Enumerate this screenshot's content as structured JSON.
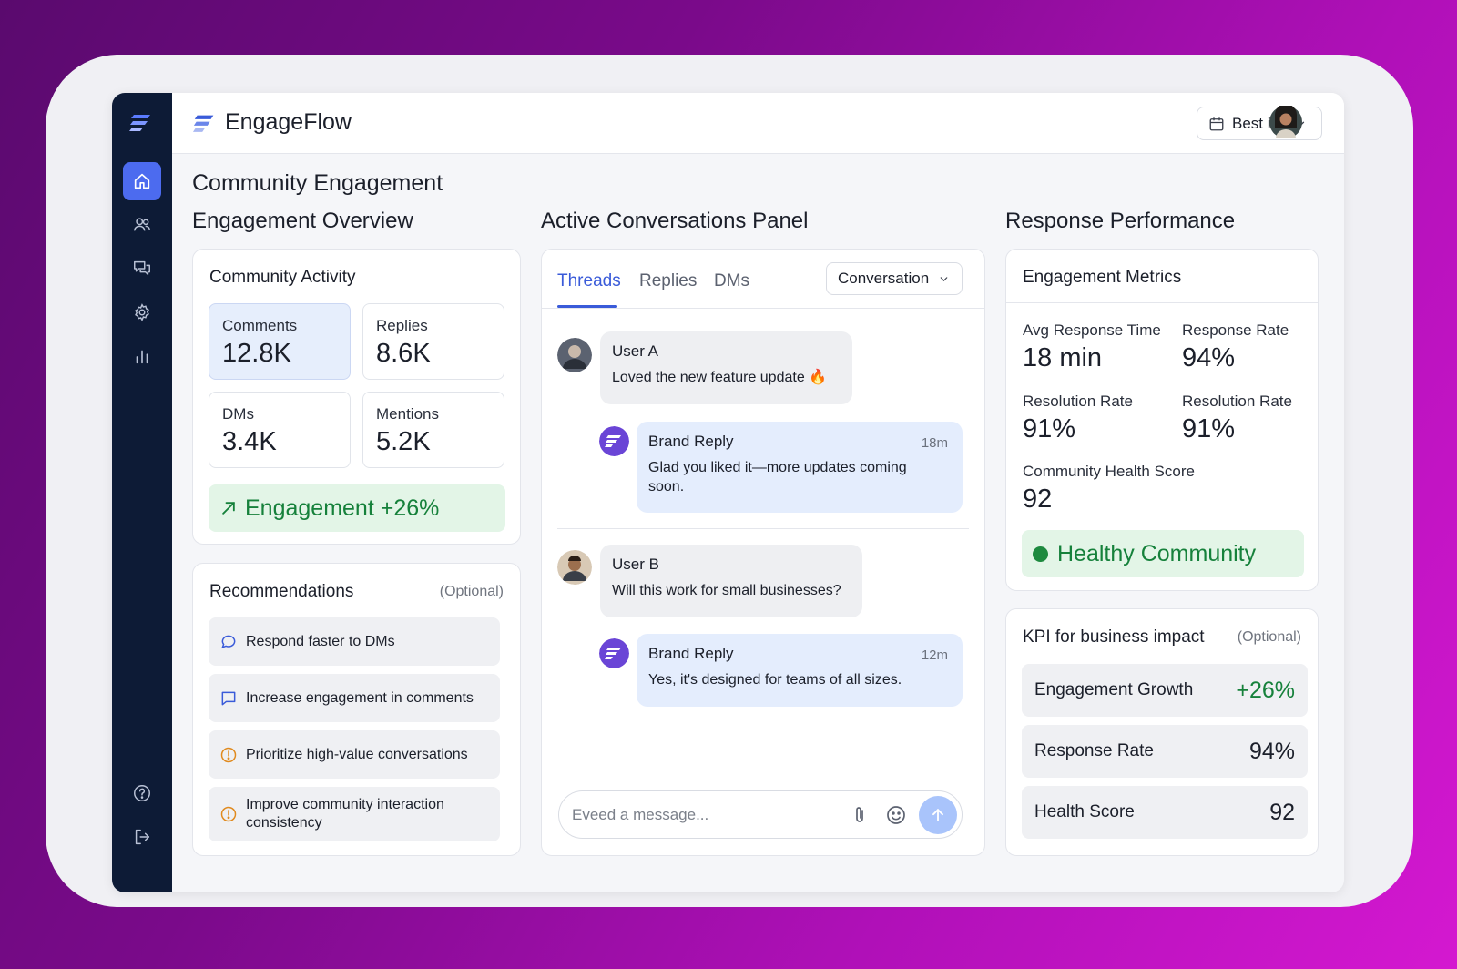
{
  "app": {
    "name": "EngageFlow",
    "dropdown_label": "Best ins"
  },
  "page": {
    "title": "Community Engagement"
  },
  "overview": {
    "section_title": "Engagement Overview",
    "activity_card_title": "Community Activity",
    "stats": [
      {
        "label": "Comments",
        "value": "12.8K"
      },
      {
        "label": "Replies",
        "value": "8.6K"
      },
      {
        "label": "DMs",
        "value": "3.4K"
      },
      {
        "label": "Mentions",
        "value": "5.2K"
      }
    ],
    "engagement_banner": "Engagement +26%",
    "recommendations_title": "Recommendations",
    "recommendations_optional": "(Optional)",
    "recommendations": [
      {
        "icon": "speech-bubble-icon",
        "text": "Respond faster to DMs"
      },
      {
        "icon": "comment-icon",
        "text": "Increase engagement in comments"
      },
      {
        "icon": "alert-circle-icon",
        "text": "Prioritize high-value conversations"
      },
      {
        "icon": "alert-circle-icon",
        "text": "Improve community interaction consistency"
      }
    ]
  },
  "conversations": {
    "section_title": "Active Conversations Panel",
    "tabs": [
      "Threads",
      "Replies",
      "DMs"
    ],
    "filter_label": "Conversation",
    "messages": [
      {
        "author": "User A",
        "text": "Loved the new feature update 🔥"
      },
      {
        "author": "Brand Reply",
        "time": "18m",
        "text": "Glad you liked it—more updates coming soon."
      },
      {
        "author": "User B",
        "text": "Will this work for small businesses?"
      },
      {
        "author": "Brand Reply",
        "time": "12m",
        "text": "Yes, it's designed for teams of all sizes."
      }
    ],
    "input_placeholder": "Eveed a message..."
  },
  "performance": {
    "section_title": "Response Performance",
    "metrics_card_title": "Engagement Metrics",
    "metrics": [
      {
        "label": "Avg Response Time",
        "value": "18 min"
      },
      {
        "label": "Response Rate",
        "value": "94%"
      },
      {
        "label": "Resolution Rate",
        "value": "91%"
      },
      {
        "label": "Resolution Rate",
        "value": "91%"
      },
      {
        "label": "Community Health Score",
        "value": "92"
      }
    ],
    "health_badge": "Healthy Community",
    "kpi_title": "KPI for  business impact",
    "kpi_optional": "(Optional)",
    "kpis": [
      {
        "label": "Engagement Growth",
        "value": "+26%"
      },
      {
        "label": "Response Rate",
        "value": "94%"
      },
      {
        "label": "Health Score",
        "value": "92"
      }
    ]
  },
  "colors": {
    "accent": "#3a5bd9",
    "sidebar": "#0d1b36",
    "success": "#16813b",
    "brand_avatar": "#6a45d6"
  }
}
